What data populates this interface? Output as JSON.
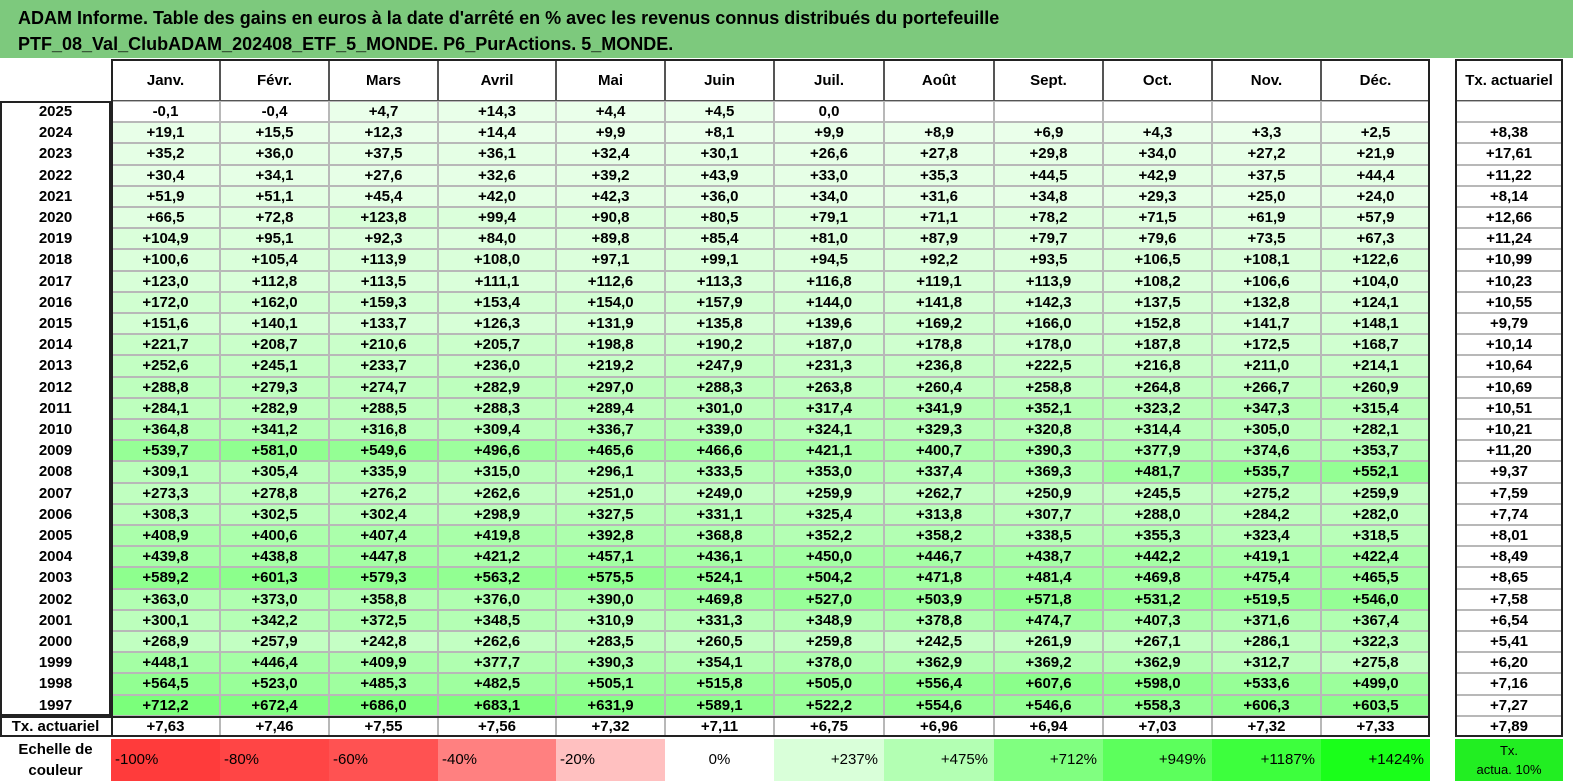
{
  "title": {
    "line1": "ADAM Informe. Table des gains en euros à la date d'arrêté en % avec les revenus connus distribués du portefeuille",
    "line2": "PTF_08_Val_ClubADAM_202408_ETF_5_MONDE. P6_PurActions. 5_MONDE."
  },
  "months": [
    "Janv.",
    "Févr.",
    "Mars",
    "Avril",
    "Mai",
    "Juin",
    "Juil.",
    "Août",
    "Sept.",
    "Oct.",
    "Nov.",
    "Déc."
  ],
  "tx_header": "Tx. actuariel",
  "rows": [
    {
      "year": "2025",
      "vals": [
        "-0,1",
        "-0,4",
        "+4,7",
        "+14,3",
        "+4,4",
        "+4,5",
        "0,0",
        "",
        "",
        "",
        "",
        ""
      ],
      "tx": ""
    },
    {
      "year": "2024",
      "vals": [
        "+19,1",
        "+15,5",
        "+12,3",
        "+14,4",
        "+9,9",
        "+8,1",
        "+9,9",
        "+8,9",
        "+6,9",
        "+4,3",
        "+3,3",
        "+2,5"
      ],
      "tx": "+8,38"
    },
    {
      "year": "2023",
      "vals": [
        "+35,2",
        "+36,0",
        "+37,5",
        "+36,1",
        "+32,4",
        "+30,1",
        "+26,6",
        "+27,8",
        "+29,8",
        "+34,0",
        "+27,2",
        "+21,9"
      ],
      "tx": "+17,61"
    },
    {
      "year": "2022",
      "vals": [
        "+30,4",
        "+34,1",
        "+27,6",
        "+32,6",
        "+39,2",
        "+43,9",
        "+33,0",
        "+35,3",
        "+44,5",
        "+42,9",
        "+37,5",
        "+44,4"
      ],
      "tx": "+11,22"
    },
    {
      "year": "2021",
      "vals": [
        "+51,9",
        "+51,1",
        "+45,4",
        "+42,0",
        "+42,3",
        "+36,0",
        "+34,0",
        "+31,6",
        "+34,8",
        "+29,3",
        "+25,0",
        "+24,0"
      ],
      "tx": "+8,14"
    },
    {
      "year": "2020",
      "vals": [
        "+66,5",
        "+72,8",
        "+123,8",
        "+99,4",
        "+90,8",
        "+80,5",
        "+79,1",
        "+71,1",
        "+78,2",
        "+71,5",
        "+61,9",
        "+57,9"
      ],
      "tx": "+12,66"
    },
    {
      "year": "2019",
      "vals": [
        "+104,9",
        "+95,1",
        "+92,3",
        "+84,0",
        "+89,8",
        "+85,4",
        "+81,0",
        "+87,9",
        "+79,7",
        "+79,6",
        "+73,5",
        "+67,3"
      ],
      "tx": "+11,24"
    },
    {
      "year": "2018",
      "vals": [
        "+100,6",
        "+105,4",
        "+113,9",
        "+108,0",
        "+97,1",
        "+99,1",
        "+94,5",
        "+92,2",
        "+93,5",
        "+106,5",
        "+108,1",
        "+122,6"
      ],
      "tx": "+10,99"
    },
    {
      "year": "2017",
      "vals": [
        "+123,0",
        "+112,8",
        "+113,5",
        "+111,1",
        "+112,6",
        "+113,3",
        "+116,8",
        "+119,1",
        "+113,9",
        "+108,2",
        "+106,6",
        "+104,0"
      ],
      "tx": "+10,23"
    },
    {
      "year": "2016",
      "vals": [
        "+172,0",
        "+162,0",
        "+159,3",
        "+153,4",
        "+154,0",
        "+157,9",
        "+144,0",
        "+141,8",
        "+142,3",
        "+137,5",
        "+132,8",
        "+124,1"
      ],
      "tx": "+10,55"
    },
    {
      "year": "2015",
      "vals": [
        "+151,6",
        "+140,1",
        "+133,7",
        "+126,3",
        "+131,9",
        "+135,8",
        "+139,6",
        "+169,2",
        "+166,0",
        "+152,8",
        "+141,7",
        "+148,1"
      ],
      "tx": "+9,79"
    },
    {
      "year": "2014",
      "vals": [
        "+221,7",
        "+208,7",
        "+210,6",
        "+205,7",
        "+198,8",
        "+190,2",
        "+187,0",
        "+178,8",
        "+178,0",
        "+187,8",
        "+172,5",
        "+168,7"
      ],
      "tx": "+10,14"
    },
    {
      "year": "2013",
      "vals": [
        "+252,6",
        "+245,1",
        "+233,7",
        "+236,0",
        "+219,2",
        "+247,9",
        "+231,3",
        "+236,8",
        "+222,5",
        "+216,8",
        "+211,0",
        "+214,1"
      ],
      "tx": "+10,64"
    },
    {
      "year": "2012",
      "vals": [
        "+288,8",
        "+279,3",
        "+274,7",
        "+282,9",
        "+297,0",
        "+288,3",
        "+263,8",
        "+260,4",
        "+258,8",
        "+264,8",
        "+266,7",
        "+260,9"
      ],
      "tx": "+10,69"
    },
    {
      "year": "2011",
      "vals": [
        "+284,1",
        "+282,9",
        "+288,5",
        "+288,3",
        "+289,4",
        "+301,0",
        "+317,4",
        "+341,9",
        "+352,1",
        "+323,2",
        "+347,3",
        "+315,4"
      ],
      "tx": "+10,51"
    },
    {
      "year": "2010",
      "vals": [
        "+364,8",
        "+341,2",
        "+316,8",
        "+309,4",
        "+336,7",
        "+339,0",
        "+324,1",
        "+329,3",
        "+320,8",
        "+314,4",
        "+305,0",
        "+282,1"
      ],
      "tx": "+10,21"
    },
    {
      "year": "2009",
      "vals": [
        "+539,7",
        "+581,0",
        "+549,6",
        "+496,6",
        "+465,6",
        "+466,6",
        "+421,1",
        "+400,7",
        "+390,3",
        "+377,9",
        "+374,6",
        "+353,7"
      ],
      "tx": "+11,20"
    },
    {
      "year": "2008",
      "vals": [
        "+309,1",
        "+305,4",
        "+335,9",
        "+315,0",
        "+296,1",
        "+333,5",
        "+353,0",
        "+337,4",
        "+369,3",
        "+481,7",
        "+535,7",
        "+552,1"
      ],
      "tx": "+9,37"
    },
    {
      "year": "2007",
      "vals": [
        "+273,3",
        "+278,8",
        "+276,2",
        "+262,6",
        "+251,0",
        "+249,0",
        "+259,9",
        "+262,7",
        "+250,9",
        "+245,5",
        "+275,2",
        "+259,9"
      ],
      "tx": "+7,59"
    },
    {
      "year": "2006",
      "vals": [
        "+308,3",
        "+302,5",
        "+302,4",
        "+298,9",
        "+327,5",
        "+331,1",
        "+325,4",
        "+313,8",
        "+307,7",
        "+288,0",
        "+284,2",
        "+282,0"
      ],
      "tx": "+7,74"
    },
    {
      "year": "2005",
      "vals": [
        "+408,9",
        "+400,6",
        "+407,4",
        "+419,8",
        "+392,8",
        "+368,8",
        "+352,2",
        "+358,2",
        "+338,5",
        "+355,3",
        "+323,4",
        "+318,5"
      ],
      "tx": "+8,01"
    },
    {
      "year": "2004",
      "vals": [
        "+439,8",
        "+438,8",
        "+447,8",
        "+421,2",
        "+457,1",
        "+436,1",
        "+450,0",
        "+446,7",
        "+438,7",
        "+442,2",
        "+419,1",
        "+422,4"
      ],
      "tx": "+8,49"
    },
    {
      "year": "2003",
      "vals": [
        "+589,2",
        "+601,3",
        "+579,3",
        "+563,2",
        "+575,5",
        "+524,1",
        "+504,2",
        "+471,8",
        "+481,4",
        "+469,8",
        "+475,4",
        "+465,5"
      ],
      "tx": "+8,65"
    },
    {
      "year": "2002",
      "vals": [
        "+363,0",
        "+373,0",
        "+358,8",
        "+376,0",
        "+390,0",
        "+469,8",
        "+527,0",
        "+503,9",
        "+571,8",
        "+531,2",
        "+519,5",
        "+546,0"
      ],
      "tx": "+7,58"
    },
    {
      "year": "2001",
      "vals": [
        "+300,1",
        "+342,2",
        "+372,5",
        "+348,5",
        "+310,9",
        "+331,3",
        "+348,9",
        "+378,8",
        "+474,7",
        "+407,3",
        "+371,6",
        "+367,4"
      ],
      "tx": "+6,54"
    },
    {
      "year": "2000",
      "vals": [
        "+268,9",
        "+257,9",
        "+242,8",
        "+262,6",
        "+283,5",
        "+260,5",
        "+259,8",
        "+242,5",
        "+261,9",
        "+267,1",
        "+286,1",
        "+322,3"
      ],
      "tx": "+5,41"
    },
    {
      "year": "1999",
      "vals": [
        "+448,1",
        "+446,4",
        "+409,9",
        "+377,7",
        "+390,3",
        "+354,1",
        "+378,0",
        "+362,9",
        "+369,2",
        "+362,9",
        "+312,7",
        "+275,8"
      ],
      "tx": "+6,20"
    },
    {
      "year": "1998",
      "vals": [
        "+564,5",
        "+523,0",
        "+485,3",
        "+482,5",
        "+505,1",
        "+515,8",
        "+505,0",
        "+556,4",
        "+607,6",
        "+598,0",
        "+533,6",
        "+499,0"
      ],
      "tx": "+7,16"
    },
    {
      "year": "1997",
      "vals": [
        "+712,2",
        "+672,4",
        "+686,0",
        "+683,1",
        "+631,9",
        "+589,1",
        "+522,2",
        "+554,6",
        "+546,6",
        "+558,3",
        "+606,3",
        "+603,5"
      ],
      "tx": "+7,27"
    }
  ],
  "footer": {
    "label": "Tx. actuariel",
    "vals": [
      "+7,63",
      "+7,46",
      "+7,55",
      "+7,56",
      "+7,32",
      "+7,11",
      "+6,75",
      "+6,96",
      "+6,94",
      "+7,03",
      "+7,32",
      "+7,33"
    ],
    "tx": "+7,89"
  },
  "scale": {
    "label_line1": "Echelle de",
    "label_line2": "couleur",
    "items": [
      {
        "text": "-100%",
        "color": "#ff3b3b"
      },
      {
        "text": "-80%",
        "color": "#ff4545"
      },
      {
        "text": "-60%",
        "color": "#ff5252"
      },
      {
        "text": "-40%",
        "color": "#ff8080"
      },
      {
        "text": "-20%",
        "color": "#ffc0c0"
      },
      {
        "text": "0%",
        "color": "#ffffff"
      },
      {
        "text": "+237%",
        "color": "#d9ffd9"
      },
      {
        "text": "+475%",
        "color": "#b3ffb3"
      },
      {
        "text": "+712%",
        "color": "#80ff80"
      },
      {
        "text": "+949%",
        "color": "#5cff5c"
      },
      {
        "text": "+1187%",
        "color": "#3dff3d"
      },
      {
        "text": "+1424%",
        "color": "#1aff1a"
      }
    ],
    "tx_line1": "Tx.",
    "tx_line2": "actua. 10%",
    "tx_color": "#22ee22"
  },
  "colors": {
    "title_bg": "#7dc97d"
  }
}
